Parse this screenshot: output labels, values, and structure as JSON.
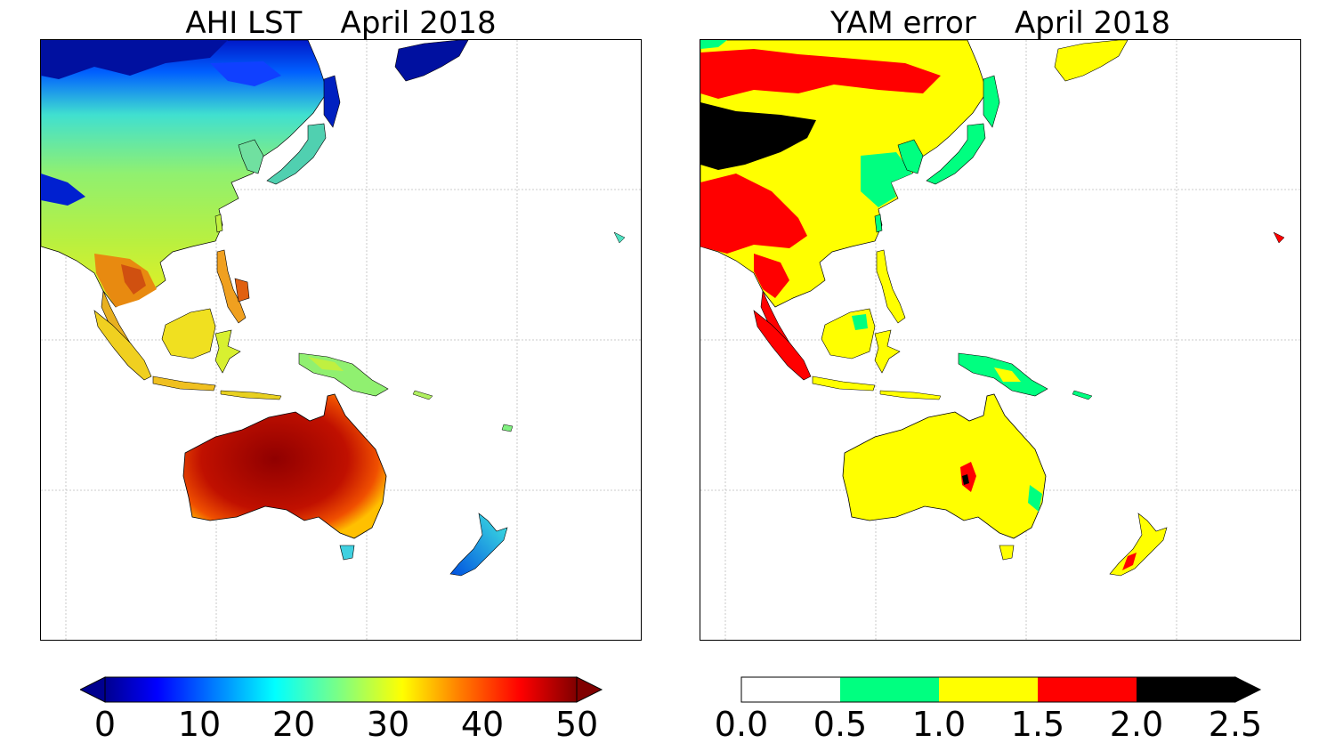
{
  "left_panel": {
    "title": "AHI LST    April 2018",
    "colorbar": {
      "type": "continuous-jet",
      "extend": "both",
      "ticks": [
        "0",
        "10",
        "20",
        "30",
        "40",
        "50"
      ],
      "range": [
        0,
        50
      ]
    }
  },
  "right_panel": {
    "title": "YAM error    April 2018",
    "colorbar": {
      "type": "discrete",
      "extend": "max",
      "ticks": [
        "0.0",
        "0.5",
        "1.0",
        "1.5",
        "2.0",
        "2.5"
      ],
      "bins": [
        {
          "range": [
            0.0,
            0.5
          ],
          "color": "#ffffff"
        },
        {
          "range": [
            0.5,
            1.0
          ],
          "color": "#00ff80"
        },
        {
          "range": [
            1.0,
            1.5
          ],
          "color": "#ffff00"
        },
        {
          "range": [
            1.5,
            2.0
          ],
          "color": "#ff0000"
        },
        {
          "range": [
            2.0,
            2.5
          ],
          "color": "#000000"
        }
      ]
    }
  },
  "colors": {
    "jet_dark_blue": "#00008f",
    "jet_blue": "#0000ff",
    "jet_cyan": "#00ffff",
    "jet_green": "#80ff80",
    "jet_yellow": "#ffff00",
    "jet_orange": "#ff8000",
    "jet_red": "#ff0000",
    "jet_dark_red": "#800000"
  }
}
